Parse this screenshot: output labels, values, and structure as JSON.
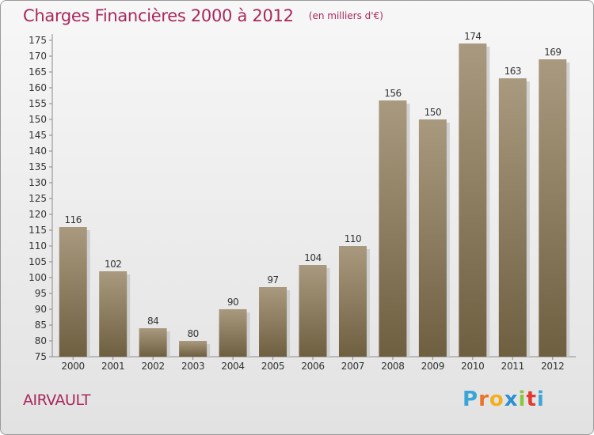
{
  "header": {
    "title": "Charges Financières 2000 à 2012",
    "subtitle": "(en milliers d'€)"
  },
  "footer": {
    "place": "AIRVAULT",
    "brand_letters": [
      "P",
      "r",
      "o",
      "x",
      "i",
      "t",
      "i"
    ],
    "brand_colors": [
      "#3aa6d8",
      "#e8742a",
      "#f2b01e",
      "#2b8fd0",
      "#8cc63e",
      "#e2382e",
      "#3aa6d8"
    ]
  },
  "colors": {
    "title": "#a8285e",
    "bar_top": "#a99a7f",
    "bar_bottom": "#6f5f41",
    "shadow": "#c8c8c8",
    "axis": "#8a8a8a"
  },
  "chart_data": {
    "type": "bar",
    "title": "Charges Financières 2000 à 2012",
    "subtitle": "(en milliers d'€)",
    "categories": [
      "2000",
      "2001",
      "2002",
      "2003",
      "2004",
      "2005",
      "2006",
      "2007",
      "2008",
      "2009",
      "2010",
      "2011",
      "2012"
    ],
    "values": [
      116,
      102,
      84,
      80,
      90,
      97,
      104,
      110,
      156,
      150,
      174,
      163,
      169
    ],
    "ylim": [
      75,
      175
    ],
    "yticks": [
      75,
      80,
      85,
      90,
      95,
      100,
      105,
      110,
      115,
      120,
      125,
      130,
      135,
      140,
      145,
      150,
      155,
      160,
      165,
      170,
      175
    ],
    "grid": false,
    "data_labels": true
  }
}
